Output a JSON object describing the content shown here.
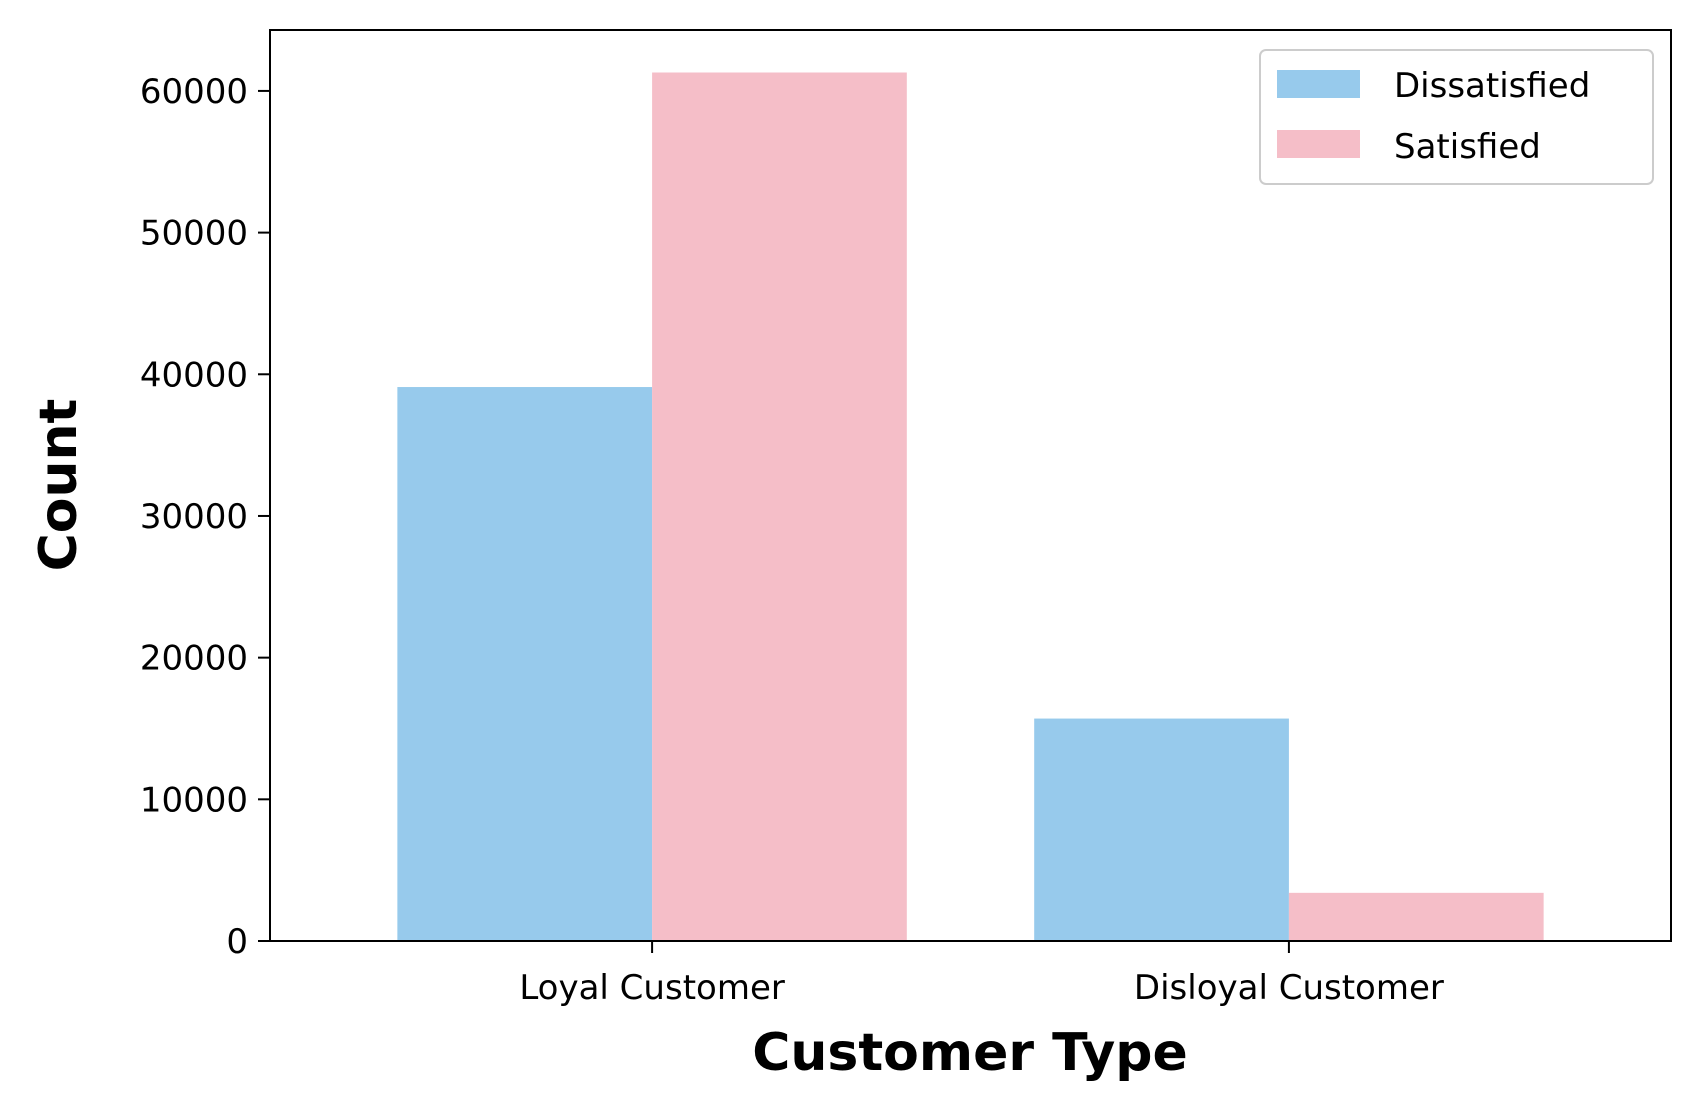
{
  "chart_data": {
    "type": "bar",
    "title": "",
    "xlabel": "Customer Type",
    "ylabel": "Count",
    "categories": [
      "Loyal Customer",
      "Disloyal Customer"
    ],
    "series": [
      {
        "name": "Dissatisfied",
        "values": [
          39100,
          15700
        ],
        "color": "#97CAEC"
      },
      {
        "name": "Satisfied",
        "values": [
          61300,
          3400
        ],
        "color": "#F5BEC8"
      }
    ],
    "yticks": [
      0,
      10000,
      20000,
      30000,
      40000,
      50000,
      60000
    ],
    "ylim": [
      0,
      64300
    ],
    "grid": false,
    "legend": "top-right"
  }
}
